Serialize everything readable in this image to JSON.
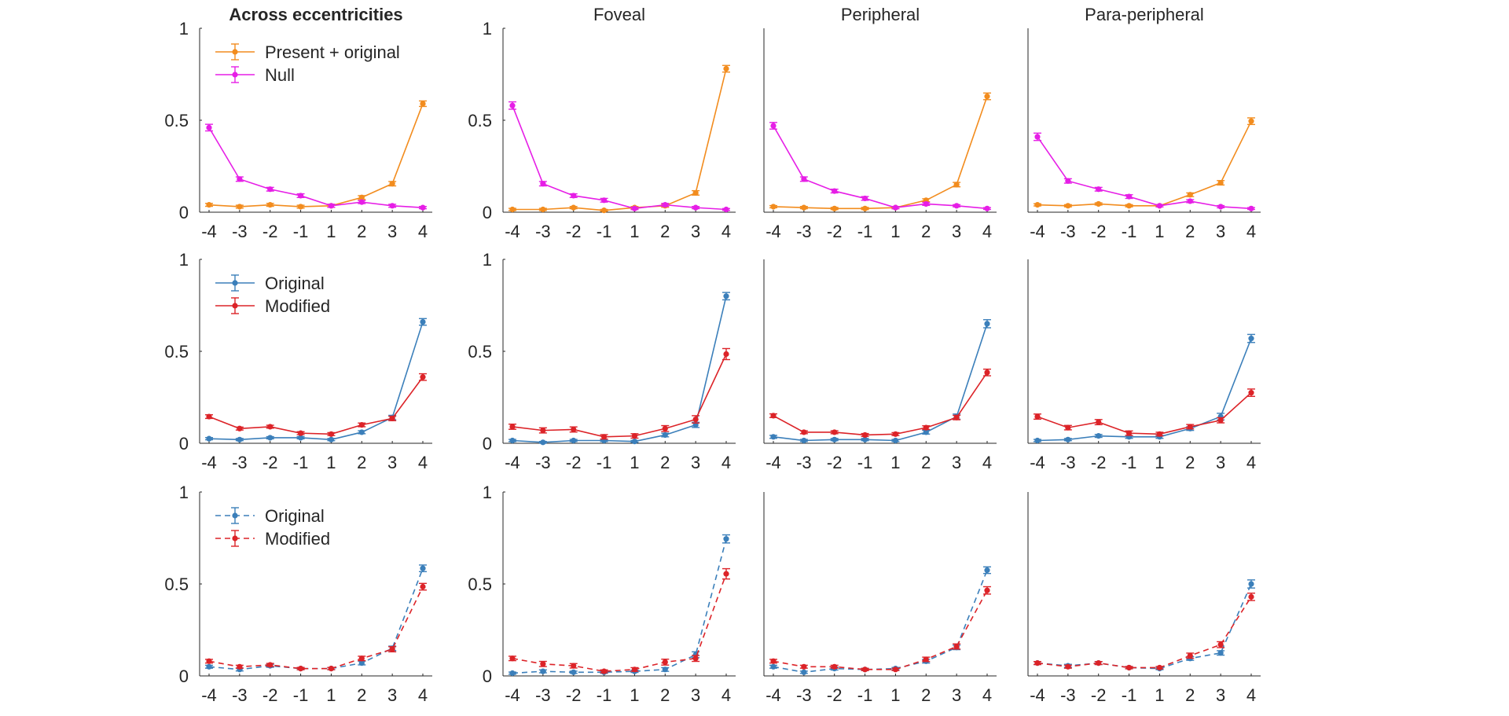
{
  "colors": {
    "present_original": "#f28c1e",
    "null": "#e61ee6",
    "original": "#3b7fba",
    "modified": "#dc2328"
  },
  "x_tick_labels": [
    "-4",
    "-3",
    "-2",
    "-1",
    "1",
    "2",
    "3",
    "4"
  ],
  "y_tick_labels": [
    "0",
    "0.5",
    "1"
  ],
  "legends": {
    "row1": [
      "Present + original",
      "Null"
    ],
    "row2": [
      "Original",
      "Modified"
    ],
    "row3": [
      "Original",
      "Modified"
    ]
  },
  "chart_data": [
    {
      "type": "line",
      "row": 1,
      "col": 1,
      "title": "Across eccentricities",
      "title_bold": true,
      "x": [
        -4,
        -3,
        -2,
        -1,
        1,
        2,
        3,
        4
      ],
      "ylim": [
        0,
        1
      ],
      "show_y_ticks": true,
      "linestyle": "solid",
      "series": [
        {
          "name": "Present + original",
          "color_key": "present_original",
          "values": [
            0.04,
            0.03,
            0.04,
            0.03,
            0.035,
            0.08,
            0.155,
            0.59
          ],
          "err": [
            0.008,
            0.008,
            0.008,
            0.008,
            0.008,
            0.01,
            0.012,
            0.015
          ]
        },
        {
          "name": "Null",
          "color_key": "null",
          "values": [
            0.46,
            0.18,
            0.125,
            0.09,
            0.035,
            0.055,
            0.035,
            0.025
          ],
          "err": [
            0.018,
            0.012,
            0.01,
            0.01,
            0.008,
            0.008,
            0.008,
            0.006
          ]
        }
      ]
    },
    {
      "type": "line",
      "row": 1,
      "col": 2,
      "title": "Foveal",
      "title_bold": false,
      "x": [
        -4,
        -3,
        -2,
        -1,
        1,
        2,
        3,
        4
      ],
      "ylim": [
        0,
        1
      ],
      "show_y_ticks": true,
      "linestyle": "solid",
      "series": [
        {
          "name": "Present + original",
          "color_key": "present_original",
          "values": [
            0.015,
            0.015,
            0.025,
            0.01,
            0.025,
            0.035,
            0.105,
            0.78
          ],
          "err": [
            0.006,
            0.006,
            0.006,
            0.005,
            0.006,
            0.008,
            0.012,
            0.018
          ]
        },
        {
          "name": "Null",
          "color_key": "null",
          "values": [
            0.58,
            0.155,
            0.09,
            0.065,
            0.02,
            0.04,
            0.025,
            0.015
          ],
          "err": [
            0.02,
            0.012,
            0.01,
            0.01,
            0.006,
            0.008,
            0.006,
            0.005
          ]
        }
      ]
    },
    {
      "type": "line",
      "row": 1,
      "col": 3,
      "title": "Peripheral",
      "title_bold": false,
      "x": [
        -4,
        -3,
        -2,
        -1,
        1,
        2,
        3,
        4
      ],
      "ylim": [
        0,
        1
      ],
      "show_y_ticks": false,
      "linestyle": "solid",
      "series": [
        {
          "name": "Present + original",
          "color_key": "present_original",
          "values": [
            0.03,
            0.025,
            0.02,
            0.02,
            0.025,
            0.065,
            0.15,
            0.63
          ],
          "err": [
            0.006,
            0.006,
            0.006,
            0.006,
            0.006,
            0.008,
            0.012,
            0.018
          ]
        },
        {
          "name": "Null",
          "color_key": "null",
          "values": [
            0.47,
            0.18,
            0.115,
            0.075,
            0.025,
            0.045,
            0.035,
            0.02
          ],
          "err": [
            0.018,
            0.012,
            0.01,
            0.01,
            0.006,
            0.008,
            0.006,
            0.005
          ]
        }
      ]
    },
    {
      "type": "line",
      "row": 1,
      "col": 4,
      "title": "Para-peripheral",
      "title_bold": false,
      "x": [
        -4,
        -3,
        -2,
        -1,
        1,
        2,
        3,
        4
      ],
      "ylim": [
        0,
        1
      ],
      "show_y_ticks": false,
      "linestyle": "solid",
      "series": [
        {
          "name": "Present + original",
          "color_key": "present_original",
          "values": [
            0.04,
            0.035,
            0.045,
            0.035,
            0.035,
            0.095,
            0.16,
            0.495
          ],
          "err": [
            0.006,
            0.006,
            0.006,
            0.006,
            0.006,
            0.01,
            0.012,
            0.018
          ]
        },
        {
          "name": "Null",
          "color_key": "null",
          "values": [
            0.41,
            0.17,
            0.125,
            0.085,
            0.035,
            0.06,
            0.03,
            0.02
          ],
          "err": [
            0.02,
            0.012,
            0.01,
            0.01,
            0.006,
            0.008,
            0.006,
            0.005
          ]
        }
      ]
    },
    {
      "type": "line",
      "row": 2,
      "col": 1,
      "title": "",
      "title_bold": false,
      "x": [
        -4,
        -3,
        -2,
        -1,
        1,
        2,
        3,
        4
      ],
      "ylim": [
        0,
        1
      ],
      "show_y_ticks": true,
      "linestyle": "solid",
      "series": [
        {
          "name": "Original",
          "color_key": "original",
          "values": [
            0.025,
            0.02,
            0.03,
            0.03,
            0.02,
            0.06,
            0.14,
            0.66
          ],
          "err": [
            0.006,
            0.006,
            0.006,
            0.006,
            0.006,
            0.008,
            0.012,
            0.018
          ]
        },
        {
          "name": "Modified",
          "color_key": "modified",
          "values": [
            0.145,
            0.08,
            0.09,
            0.055,
            0.05,
            0.1,
            0.135,
            0.36
          ],
          "err": [
            0.01,
            0.008,
            0.008,
            0.008,
            0.008,
            0.01,
            0.012,
            0.018
          ]
        }
      ]
    },
    {
      "type": "line",
      "row": 2,
      "col": 2,
      "title": "",
      "title_bold": false,
      "x": [
        -4,
        -3,
        -2,
        -1,
        1,
        2,
        3,
        4
      ],
      "ylim": [
        0,
        1
      ],
      "show_y_ticks": true,
      "linestyle": "solid",
      "series": [
        {
          "name": "Original",
          "color_key": "original",
          "values": [
            0.015,
            0.005,
            0.015,
            0.015,
            0.01,
            0.045,
            0.1,
            0.8
          ],
          "err": [
            0.006,
            0.005,
            0.006,
            0.006,
            0.005,
            0.01,
            0.014,
            0.02
          ]
        },
        {
          "name": "Modified",
          "color_key": "modified",
          "values": [
            0.09,
            0.07,
            0.075,
            0.035,
            0.04,
            0.08,
            0.13,
            0.485
          ],
          "err": [
            0.014,
            0.014,
            0.014,
            0.012,
            0.012,
            0.016,
            0.02,
            0.03
          ]
        }
      ]
    },
    {
      "type": "line",
      "row": 2,
      "col": 3,
      "title": "",
      "title_bold": false,
      "x": [
        -4,
        -3,
        -2,
        -1,
        1,
        2,
        3,
        4
      ],
      "ylim": [
        0,
        1
      ],
      "show_y_ticks": false,
      "linestyle": "solid",
      "series": [
        {
          "name": "Original",
          "color_key": "original",
          "values": [
            0.035,
            0.015,
            0.02,
            0.02,
            0.015,
            0.06,
            0.145,
            0.65
          ],
          "err": [
            0.008,
            0.006,
            0.006,
            0.006,
            0.006,
            0.01,
            0.014,
            0.022
          ]
        },
        {
          "name": "Modified",
          "color_key": "modified",
          "values": [
            0.15,
            0.06,
            0.06,
            0.045,
            0.05,
            0.085,
            0.14,
            0.385
          ],
          "err": [
            0.01,
            0.008,
            0.008,
            0.008,
            0.008,
            0.01,
            0.012,
            0.018
          ]
        }
      ]
    },
    {
      "type": "line",
      "row": 2,
      "col": 4,
      "title": "",
      "title_bold": false,
      "x": [
        -4,
        -3,
        -2,
        -1,
        1,
        2,
        3,
        4
      ],
      "ylim": [
        0,
        1
      ],
      "show_y_ticks": false,
      "linestyle": "solid",
      "series": [
        {
          "name": "Original",
          "color_key": "original",
          "values": [
            0.015,
            0.02,
            0.04,
            0.035,
            0.035,
            0.08,
            0.145,
            0.57
          ],
          "err": [
            0.006,
            0.006,
            0.008,
            0.008,
            0.008,
            0.01,
            0.018,
            0.022
          ]
        },
        {
          "name": "Modified",
          "color_key": "modified",
          "values": [
            0.145,
            0.085,
            0.115,
            0.055,
            0.05,
            0.09,
            0.125,
            0.275
          ],
          "err": [
            0.014,
            0.012,
            0.014,
            0.012,
            0.01,
            0.012,
            0.014,
            0.02
          ]
        }
      ]
    },
    {
      "type": "line",
      "row": 3,
      "col": 1,
      "title": "",
      "title_bold": false,
      "x": [
        -4,
        -3,
        -2,
        -1,
        1,
        2,
        3,
        4
      ],
      "ylim": [
        0,
        1
      ],
      "show_y_ticks": true,
      "linestyle": "dashed",
      "series": [
        {
          "name": "Original",
          "color_key": "original",
          "values": [
            0.05,
            0.035,
            0.055,
            0.04,
            0.04,
            0.07,
            0.15,
            0.585
          ],
          "err": [
            0.008,
            0.008,
            0.008,
            0.006,
            0.006,
            0.01,
            0.012,
            0.018
          ]
        },
        {
          "name": "Modified",
          "color_key": "modified",
          "values": [
            0.08,
            0.05,
            0.06,
            0.04,
            0.04,
            0.095,
            0.145,
            0.485
          ],
          "err": [
            0.01,
            0.008,
            0.008,
            0.006,
            0.006,
            0.012,
            0.014,
            0.018
          ]
        }
      ]
    },
    {
      "type": "line",
      "row": 3,
      "col": 2,
      "title": "",
      "title_bold": false,
      "x": [
        -4,
        -3,
        -2,
        -1,
        1,
        2,
        3,
        4
      ],
      "ylim": [
        0,
        1
      ],
      "show_y_ticks": true,
      "linestyle": "dashed",
      "series": [
        {
          "name": "Original",
          "color_key": "original",
          "values": [
            0.015,
            0.025,
            0.02,
            0.02,
            0.025,
            0.035,
            0.115,
            0.745
          ],
          "err": [
            0.006,
            0.008,
            0.006,
            0.006,
            0.006,
            0.01,
            0.016,
            0.022
          ]
        },
        {
          "name": "Modified",
          "color_key": "modified",
          "values": [
            0.095,
            0.065,
            0.055,
            0.025,
            0.035,
            0.075,
            0.095,
            0.555
          ],
          "err": [
            0.012,
            0.014,
            0.012,
            0.008,
            0.01,
            0.016,
            0.016,
            0.028
          ]
        }
      ]
    },
    {
      "type": "line",
      "row": 3,
      "col": 3,
      "title": "",
      "title_bold": false,
      "x": [
        -4,
        -3,
        -2,
        -1,
        1,
        2,
        3,
        4
      ],
      "ylim": [
        0,
        1
      ],
      "show_y_ticks": false,
      "linestyle": "dashed",
      "series": [
        {
          "name": "Original",
          "color_key": "original",
          "values": [
            0.05,
            0.02,
            0.04,
            0.035,
            0.04,
            0.08,
            0.155,
            0.575
          ],
          "err": [
            0.008,
            0.006,
            0.008,
            0.006,
            0.006,
            0.01,
            0.012,
            0.018
          ]
        },
        {
          "name": "Modified",
          "color_key": "modified",
          "values": [
            0.08,
            0.05,
            0.05,
            0.035,
            0.035,
            0.09,
            0.16,
            0.465
          ],
          "err": [
            0.01,
            0.008,
            0.008,
            0.006,
            0.006,
            0.012,
            0.014,
            0.02
          ]
        }
      ]
    },
    {
      "type": "line",
      "row": 3,
      "col": 4,
      "title": "",
      "title_bold": false,
      "x": [
        -4,
        -3,
        -2,
        -1,
        1,
        2,
        3,
        4
      ],
      "ylim": [
        0,
        1
      ],
      "show_y_ticks": false,
      "linestyle": "dashed",
      "series": [
        {
          "name": "Original",
          "color_key": "original",
          "values": [
            0.07,
            0.055,
            0.07,
            0.045,
            0.04,
            0.095,
            0.125,
            0.5
          ],
          "err": [
            0.008,
            0.008,
            0.008,
            0.006,
            0.006,
            0.01,
            0.012,
            0.022
          ]
        },
        {
          "name": "Modified",
          "color_key": "modified",
          "values": [
            0.07,
            0.05,
            0.07,
            0.045,
            0.045,
            0.11,
            0.17,
            0.43
          ],
          "err": [
            0.008,
            0.008,
            0.008,
            0.006,
            0.006,
            0.014,
            0.016,
            0.02
          ]
        }
      ]
    }
  ]
}
